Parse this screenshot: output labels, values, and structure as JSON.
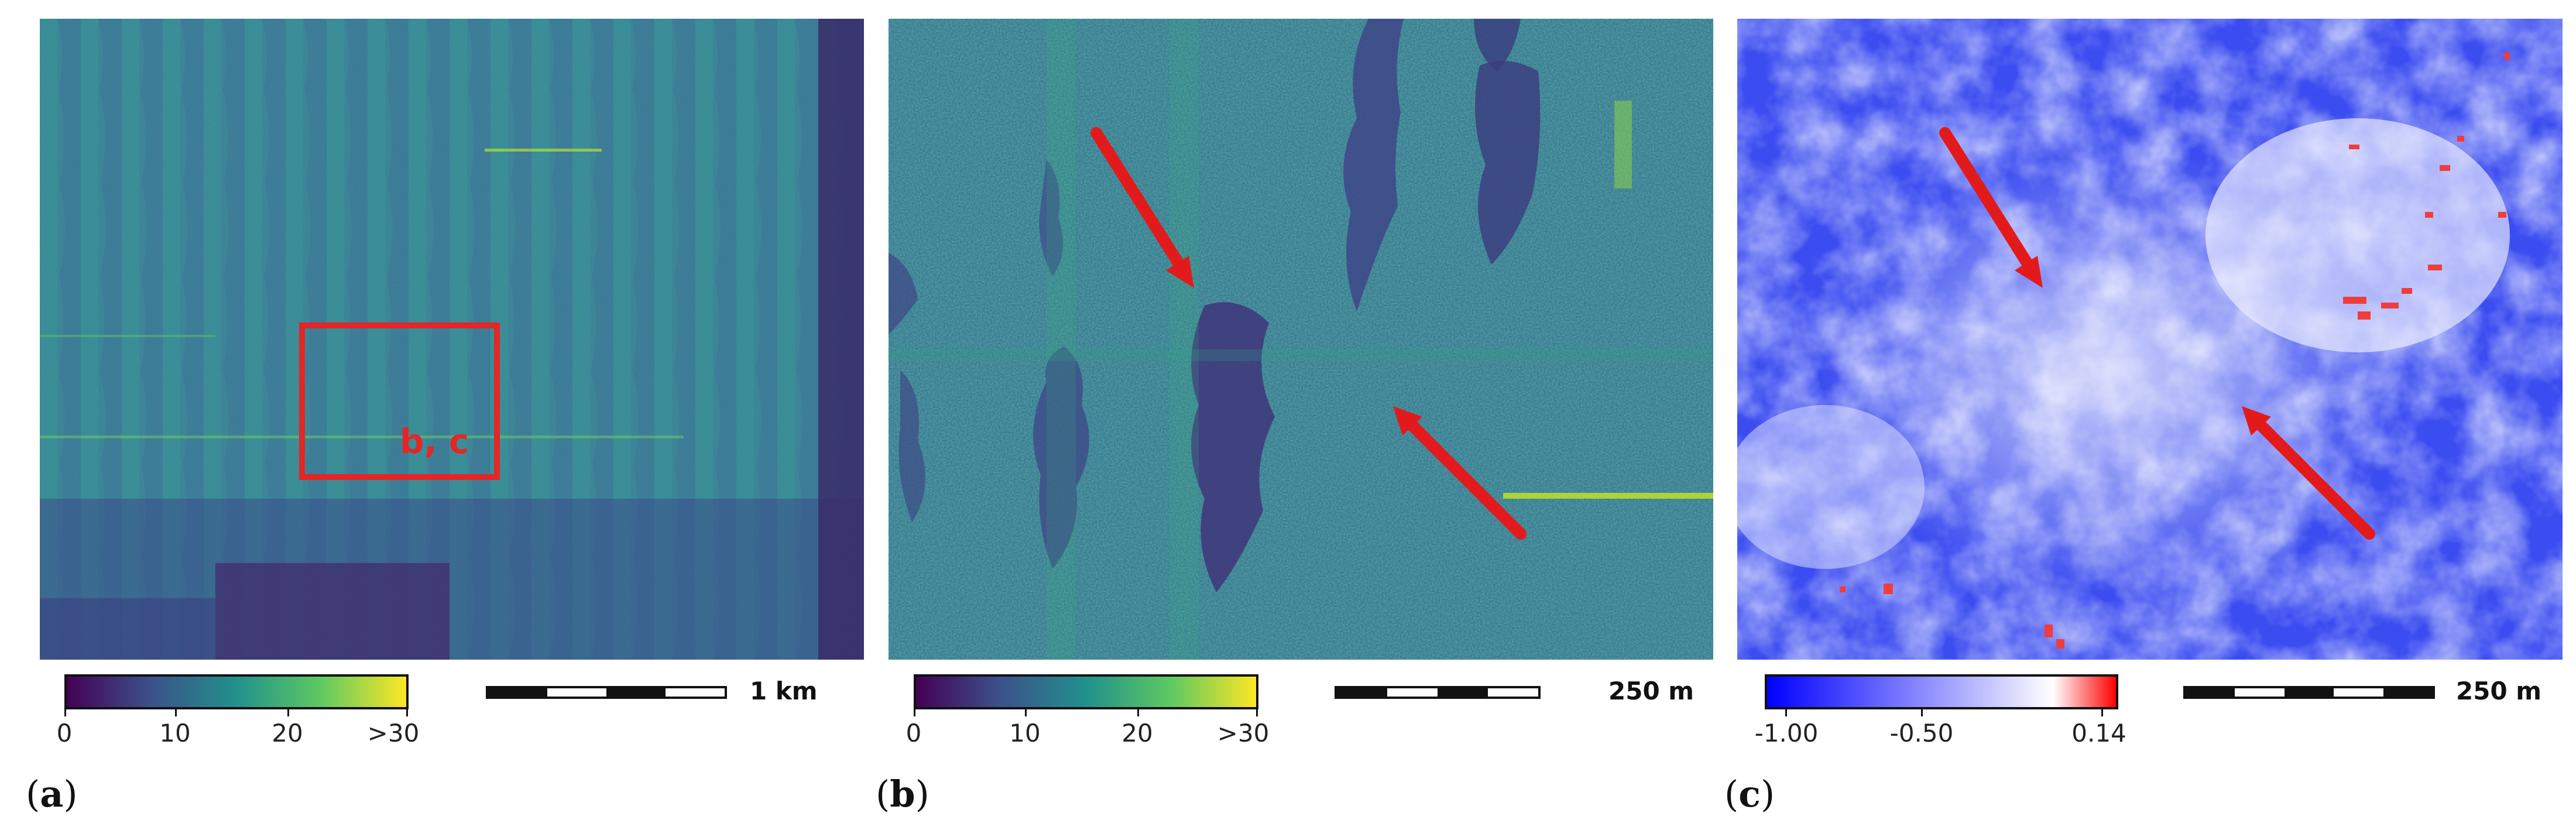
{
  "panels": [
    {
      "id": "a",
      "label": "a",
      "box_label": "b, c",
      "colorbar": {
        "ticks": [
          "0",
          "10",
          "20",
          ">30"
        ],
        "colors": [
          "#440154",
          "#31688e",
          "#21918c",
          "#35b779",
          "#fde725"
        ]
      },
      "scale_bar": "1 km"
    },
    {
      "id": "b",
      "label": "b",
      "colorbar": {
        "ticks": [
          "0",
          "10",
          "20",
          ">30"
        ],
        "colors": [
          "#440154",
          "#31688e",
          "#21918c",
          "#35b779",
          "#fde725"
        ]
      },
      "scale_bar": "250 m"
    },
    {
      "id": "c",
      "label": "c",
      "colorbar": {
        "ticks": [
          "-1.00",
          "-0.50",
          "0.14"
        ],
        "colors": [
          "#0000ff",
          "#ffffff",
          "#ff0000"
        ]
      },
      "scale_bar": "250 m"
    }
  ],
  "colors": {
    "arrow": "#e31a1c",
    "highlight_box": "#e32626"
  }
}
